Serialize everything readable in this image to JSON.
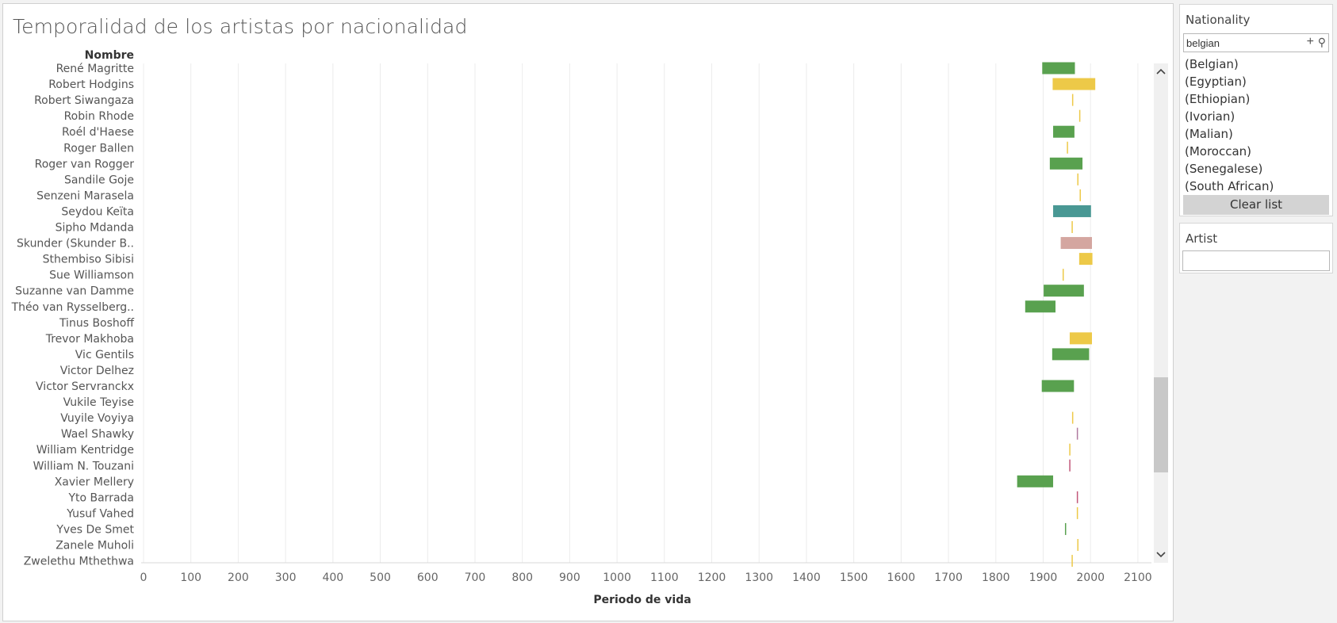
{
  "page": {
    "title": "Temporalidad de los artistas por nacionalidad"
  },
  "colors": {
    "belgian": "#59a14f",
    "south_african": "#edc948",
    "malian": "#499894",
    "ethiopian": "#d4a6a0",
    "egyptian": "#b07aa1",
    "moroccan": "#c2577a"
  },
  "chart_data": {
    "type": "gantt",
    "title": "",
    "ylabel": "Nombre",
    "xlabel": "Periodo de vida",
    "xlim": [
      0,
      2150
    ],
    "xticks": [
      0,
      100,
      200,
      300,
      400,
      500,
      600,
      700,
      800,
      900,
      1000,
      1100,
      1200,
      1300,
      1400,
      1500,
      1600,
      1700,
      1800,
      1900,
      2000,
      2100
    ],
    "grid": "vertical",
    "rows": [
      {
        "name": "René Magritte",
        "start": 1898,
        "end": 1967,
        "nationality": "belgian"
      },
      {
        "name": "Robert Hodgins",
        "start": 1920,
        "end": 2010,
        "nationality": "south_african"
      },
      {
        "name": "Robert Siwangaza",
        "start": 1961,
        "end": 1961,
        "nationality": "south_african"
      },
      {
        "name": "Robin Rhode",
        "start": 1976,
        "end": 1976,
        "nationality": "south_african"
      },
      {
        "name": "Roél d'Haese",
        "start": 1921,
        "end": 1966,
        "nationality": "belgian"
      },
      {
        "name": "Roger Ballen",
        "start": 1950,
        "end": 1950,
        "nationality": "south_african"
      },
      {
        "name": "Roger van Rogger",
        "start": 1914,
        "end": 1983,
        "nationality": "belgian"
      },
      {
        "name": "Sandile Goje",
        "start": 1972,
        "end": 1972,
        "nationality": "south_african"
      },
      {
        "name": "Senzeni Marasela",
        "start": 1977,
        "end": 1977,
        "nationality": "south_african"
      },
      {
        "name": "Seydou Keïta",
        "start": 1921,
        "end": 2001,
        "nationality": "malian"
      },
      {
        "name": "Sipho Mdanda",
        "start": 1960,
        "end": 1960,
        "nationality": "south_african"
      },
      {
        "name": "Skunder (Skunder B..",
        "start": 1937,
        "end": 2003,
        "nationality": "ethiopian"
      },
      {
        "name": "Sthembiso Sibisi",
        "start": 1976,
        "end": 2004,
        "nationality": "south_african"
      },
      {
        "name": "Sue Williamson",
        "start": 1941,
        "end": 1941,
        "nationality": "south_african"
      },
      {
        "name": "Suzanne van Damme",
        "start": 1901,
        "end": 1986,
        "nationality": "belgian"
      },
      {
        "name": "Théo van Rysselberg..",
        "start": 1862,
        "end": 1926,
        "nationality": "belgian"
      },
      {
        "name": "Tinus Boshoff",
        "start": null,
        "end": null,
        "nationality": "south_african"
      },
      {
        "name": "Trevor Makhoba",
        "start": 1956,
        "end": 2003,
        "nationality": "south_african"
      },
      {
        "name": "Vic Gentils",
        "start": 1919,
        "end": 1997,
        "nationality": "belgian"
      },
      {
        "name": "Victor Delhez",
        "start": null,
        "end": null,
        "nationality": "belgian"
      },
      {
        "name": "Victor Servranckx",
        "start": 1897,
        "end": 1965,
        "nationality": "belgian"
      },
      {
        "name": "Vukile Teyise",
        "start": null,
        "end": null,
        "nationality": "south_african"
      },
      {
        "name": "Vuyile Voyiya",
        "start": 1961,
        "end": 1961,
        "nationality": "south_african"
      },
      {
        "name": "Wael Shawky",
        "start": 1971,
        "end": 1971,
        "nationality": "egyptian"
      },
      {
        "name": "William Kentridge",
        "start": 1955,
        "end": 1955,
        "nationality": "south_african"
      },
      {
        "name": "William N. Touzani",
        "start": 1955,
        "end": 1955,
        "nationality": "moroccan"
      },
      {
        "name": "Xavier Mellery",
        "start": 1845,
        "end": 1921,
        "nationality": "belgian"
      },
      {
        "name": "Yto Barrada",
        "start": 1971,
        "end": 1971,
        "nationality": "moroccan"
      },
      {
        "name": "Yusuf Vahed",
        "start": 1971,
        "end": 1971,
        "nationality": "south_african"
      },
      {
        "name": "Yves De Smet",
        "start": 1946,
        "end": 1946,
        "nationality": "belgian"
      },
      {
        "name": "Zanele Muholi",
        "start": 1972,
        "end": 1972,
        "nationality": "south_african"
      },
      {
        "name": "Zwelethu Mthethwa",
        "start": 1960,
        "end": 1960,
        "nationality": "south_african"
      }
    ]
  },
  "filters": {
    "nationality": {
      "title": "Nationality",
      "search_value": "belgian",
      "add_icon": "plus-icon",
      "search_icon": "magnifier-icon",
      "items": [
        "(Belgian)",
        "(Egyptian)",
        "(Ethiopian)",
        "(Ivorian)",
        "(Malian)",
        "(Moroccan)",
        "(Senegalese)",
        "(South African)"
      ],
      "clear_label": "Clear list"
    },
    "artist": {
      "title": "Artist",
      "value": ""
    }
  },
  "scrollbar": {
    "up_icon": "chevron-up-icon",
    "down_icon": "chevron-down-icon",
    "thumb_position": 0.8
  }
}
